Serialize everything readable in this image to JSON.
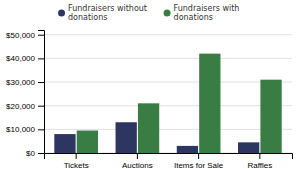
{
  "chart_data": {
    "type": "bar",
    "categories": [
      "Tickets",
      "Auctions",
      "Items for Sale",
      "Raffles"
    ],
    "series": [
      {
        "name": "Fundraisers without\ndonations",
        "color": "#2d3561",
        "values": [
          8000,
          13000,
          3000,
          4500
        ]
      },
      {
        "name": "Fundraisers with\ndonations",
        "color": "#3a7d44",
        "values": [
          9500,
          21000,
          42000,
          31000
        ]
      }
    ],
    "ylim": [
      0,
      52000
    ],
    "yticks": [
      {
        "value": 0,
        "label": "$0"
      },
      {
        "value": 10000,
        "label": "$10,000"
      },
      {
        "value": 20000,
        "label": "$20,000"
      },
      {
        "value": 30000,
        "label": "$30,000"
      },
      {
        "value": 40000,
        "label": "$40,000"
      },
      {
        "value": 50000,
        "label": "$50,000"
      }
    ],
    "grid": true,
    "legend": "top"
  }
}
